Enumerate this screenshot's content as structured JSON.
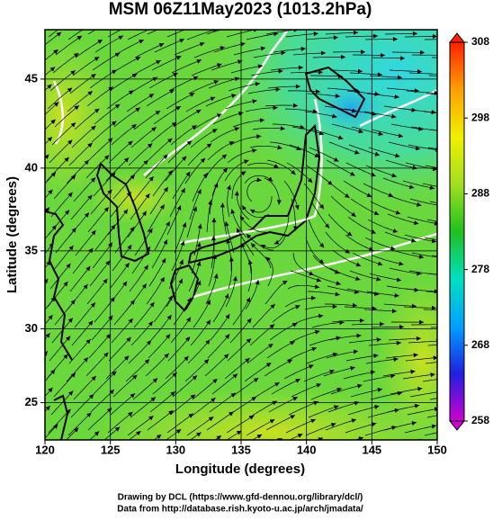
{
  "title": "MSM 06Z11May2023 (1013.2hPa)",
  "x_axis": {
    "label": "Longitude (degrees)",
    "lim": [
      120,
      150
    ],
    "ticks": [
      120,
      125,
      130,
      135,
      140,
      145,
      150
    ]
  },
  "y_axis": {
    "label": "Latitude  (degrees)",
    "lim": [
      22.4,
      47.6
    ],
    "ticks": [
      25,
      30,
      35,
      40,
      45
    ],
    "projection": "mercator"
  },
  "grid": true,
  "colorbar": {
    "lim": [
      258,
      308
    ],
    "ticks": [
      258,
      268,
      278,
      288,
      298,
      308
    ],
    "colors": [
      "#d000d0",
      "#2020e0",
      "#00a0ff",
      "#00e0c0",
      "#20c020",
      "#a0e020",
      "#f0f000",
      "#ffa000",
      "#ff2000"
    ]
  },
  "credits": [
    "Drawing by DCL (https://www.gfd-dennou.org/library/dcl/)",
    "Data from http://database.rish.kyoto-u.ac.jp/arch/jmadata/"
  ]
}
